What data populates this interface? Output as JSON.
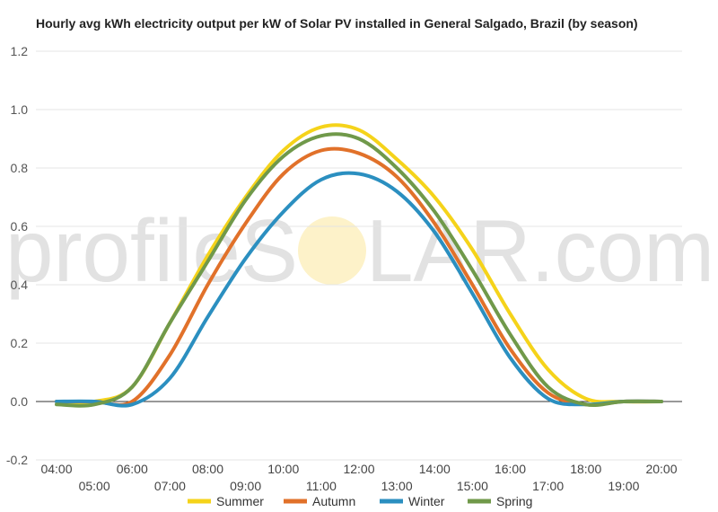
{
  "watermark": {
    "text_left": "profileS",
    "text_right": "LAR.com"
  },
  "chart_data": {
    "type": "line",
    "title": "Hourly avg kWh electricity output per kW of Solar PV installed in General Salgado, Brazil (by season)",
    "xlabel": "",
    "ylabel": "",
    "x_ticks": [
      "04:00",
      "05:00",
      "06:00",
      "07:00",
      "08:00",
      "09:00",
      "10:00",
      "11:00",
      "12:00",
      "13:00",
      "14:00",
      "15:00",
      "16:00",
      "17:00",
      "18:00",
      "19:00",
      "20:00"
    ],
    "y_ticks": [
      "-0.2",
      "0.0",
      "0.2",
      "0.4",
      "0.6",
      "0.8",
      "1.0",
      "1.2"
    ],
    "xlim": [
      4,
      20
    ],
    "ylim": [
      -0.2,
      1.2
    ],
    "grid": true,
    "legend_position": "bottom",
    "series": [
      {
        "name": "Summer",
        "color": "#f5d31a",
        "x": [
          4,
          5,
          6,
          7,
          8,
          9,
          10,
          11,
          12,
          13,
          14,
          15,
          16,
          17,
          18,
          19,
          20
        ],
        "values": [
          0.0,
          0.0,
          0.05,
          0.27,
          0.5,
          0.7,
          0.86,
          0.94,
          0.93,
          0.83,
          0.7,
          0.52,
          0.3,
          0.11,
          0.01,
          0.0,
          0.0
        ]
      },
      {
        "name": "Autumn",
        "color": "#e1712a",
        "x": [
          4,
          5,
          6,
          7,
          8,
          9,
          10,
          11,
          12,
          13,
          14,
          15,
          16,
          17,
          18,
          19,
          20
        ],
        "values": [
          0.0,
          0.0,
          0.0,
          0.16,
          0.4,
          0.61,
          0.78,
          0.86,
          0.85,
          0.77,
          0.61,
          0.4,
          0.18,
          0.03,
          -0.01,
          0.0,
          0.0
        ]
      },
      {
        "name": "Winter",
        "color": "#2b8fc0",
        "x": [
          4,
          5,
          6,
          7,
          8,
          9,
          10,
          11,
          12,
          13,
          14,
          15,
          16,
          17,
          18,
          19,
          20
        ],
        "values": [
          0.0,
          0.0,
          -0.01,
          0.08,
          0.29,
          0.49,
          0.65,
          0.76,
          0.78,
          0.72,
          0.58,
          0.37,
          0.15,
          0.01,
          -0.01,
          0.0,
          0.0
        ]
      },
      {
        "name": "Spring",
        "color": "#70994a",
        "x": [
          4,
          5,
          6,
          7,
          8,
          9,
          10,
          11,
          12,
          13,
          14,
          15,
          16,
          17,
          18,
          19,
          20
        ],
        "values": [
          -0.01,
          -0.01,
          0.05,
          0.27,
          0.48,
          0.69,
          0.84,
          0.91,
          0.9,
          0.8,
          0.65,
          0.45,
          0.23,
          0.05,
          -0.01,
          0.0,
          0.0
        ]
      }
    ]
  }
}
